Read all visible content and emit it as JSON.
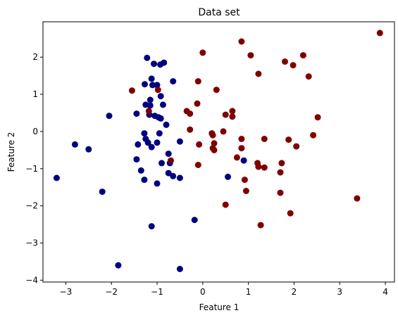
{
  "chart_data": {
    "type": "scatter",
    "title": "Data set",
    "xlabel": "Feature 1",
    "ylabel": "Feature 2",
    "xlim": [
      -3.5,
      4.2
    ],
    "ylim": [
      -4.05,
      2.95
    ],
    "xticks": [
      -3,
      -2,
      -1,
      0,
      1,
      2,
      3,
      4
    ],
    "yticks": [
      -4,
      -3,
      -2,
      -1,
      0,
      1,
      2
    ],
    "grid": false,
    "legend": "none",
    "series": [
      {
        "color": "#000080",
        "points": [
          [
            -3.2,
            -1.25
          ],
          [
            -2.8,
            -0.35
          ],
          [
            -2.5,
            -0.48
          ],
          [
            -2.2,
            -1.62
          ],
          [
            -2.05,
            0.42
          ],
          [
            -1.85,
            -3.6
          ],
          [
            -1.45,
            0.48
          ],
          [
            -1.45,
            -0.75
          ],
          [
            -1.42,
            -0.35
          ],
          [
            -1.35,
            -1.05
          ],
          [
            -1.28,
            -1.3
          ],
          [
            -1.28,
            -0.05
          ],
          [
            -1.27,
            1.27
          ],
          [
            -1.25,
            0.72
          ],
          [
            -1.25,
            -0.2
          ],
          [
            -1.22,
            1.98
          ],
          [
            -1.2,
            -0.3
          ],
          [
            -1.17,
            0.45
          ],
          [
            -1.15,
            0.85
          ],
          [
            -1.15,
            0.7
          ],
          [
            -1.12,
            -0.42
          ],
          [
            -1.12,
            1.42
          ],
          [
            -1.12,
            -2.55
          ],
          [
            -1.1,
            1.25
          ],
          [
            -1.07,
            1.82
          ],
          [
            -1.05,
            0.42
          ],
          [
            -1.0,
            1.25
          ],
          [
            -1.0,
            -0.3
          ],
          [
            -1.0,
            -1.4
          ],
          [
            -0.97,
            0.38
          ],
          [
            -0.95,
            -0.05
          ],
          [
            -0.93,
            1.8
          ],
          [
            -0.92,
            0.95
          ],
          [
            -0.92,
            0.35
          ],
          [
            -0.9,
            -0.85
          ],
          [
            -0.87,
            0.72
          ],
          [
            -0.85,
            1.85
          ],
          [
            -0.8,
            0.18
          ],
          [
            -0.75,
            -0.6
          ],
          [
            -0.75,
            -1.12
          ],
          [
            -0.72,
            -0.85
          ],
          [
            -0.65,
            1.35
          ],
          [
            -0.65,
            -1.2
          ],
          [
            -0.5,
            -0.27
          ],
          [
            -0.5,
            -1.25
          ],
          [
            -0.5,
            -3.7
          ],
          [
            -0.18,
            -2.38
          ],
          [
            0.55,
            -1.22
          ],
          [
            0.9,
            -0.78
          ]
        ]
      },
      {
        "color": "#800000",
        "points": [
          [
            -1.55,
            1.1
          ],
          [
            -1.18,
            0.55
          ],
          [
            -0.7,
            -0.78
          ],
          [
            -0.98,
            1.12
          ],
          [
            -0.35,
            0.55
          ],
          [
            -0.28,
            0.48
          ],
          [
            -0.28,
            0.05
          ],
          [
            -0.12,
            0.75
          ],
          [
            -0.1,
            1.35
          ],
          [
            -0.1,
            -0.9
          ],
          [
            -0.08,
            -0.35
          ],
          [
            0.0,
            2.12
          ],
          [
            0.2,
            -0.05
          ],
          [
            0.22,
            -0.1
          ],
          [
            0.22,
            -0.45
          ],
          [
            0.25,
            -0.5
          ],
          [
            0.25,
            -0.32
          ],
          [
            0.3,
            1.12
          ],
          [
            0.45,
            0.0
          ],
          [
            0.5,
            0.45
          ],
          [
            0.5,
            -1.97
          ],
          [
            0.65,
            0.55
          ],
          [
            0.65,
            0.4
          ],
          [
            0.75,
            -0.7
          ],
          [
            0.85,
            2.42
          ],
          [
            0.85,
            -0.2
          ],
          [
            0.85,
            -0.45
          ],
          [
            0.92,
            -1.3
          ],
          [
            0.95,
            -1.6
          ],
          [
            1.05,
            2.05
          ],
          [
            1.2,
            -0.85
          ],
          [
            1.22,
            1.55
          ],
          [
            1.22,
            -0.95
          ],
          [
            1.27,
            -2.52
          ],
          [
            1.35,
            -0.97
          ],
          [
            1.35,
            -0.2
          ],
          [
            1.7,
            -1.1
          ],
          [
            1.7,
            -1.65
          ],
          [
            1.73,
            -0.85
          ],
          [
            1.8,
            1.88
          ],
          [
            1.88,
            -0.22
          ],
          [
            1.92,
            -2.2
          ],
          [
            1.98,
            1.78
          ],
          [
            2.05,
            -0.4
          ],
          [
            2.2,
            2.05
          ],
          [
            2.32,
            1.48
          ],
          [
            2.42,
            -0.1
          ],
          [
            2.52,
            0.38
          ],
          [
            3.38,
            -1.8
          ],
          [
            3.88,
            2.65
          ]
        ]
      }
    ]
  }
}
